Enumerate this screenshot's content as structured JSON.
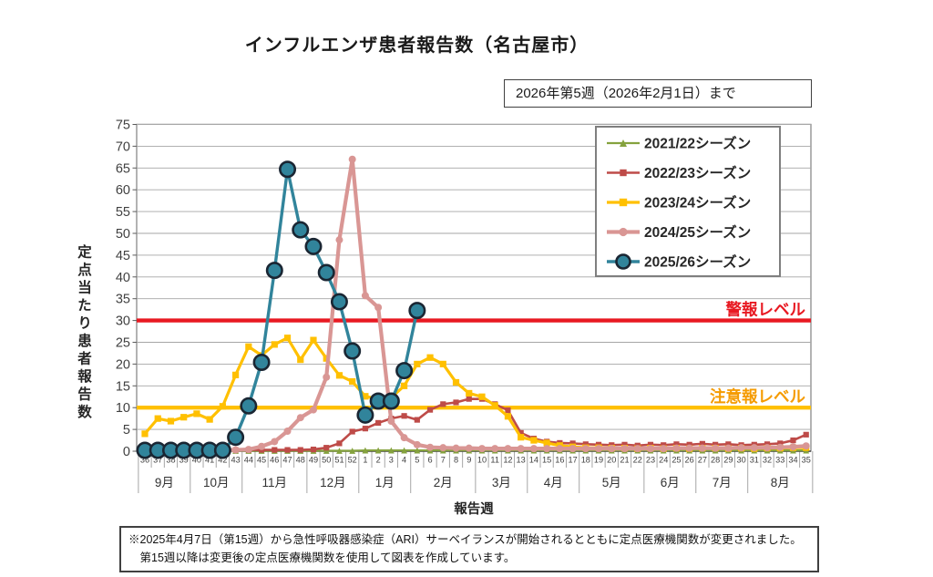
{
  "title": "インフルエンザ患者報告数（名古屋市）",
  "annotation": "2026年第5週（2026年2月1日）まで",
  "footnote": {
    "line1": "※2025年4月7日（第15週）から急性呼吸器感染症（ARI）サーベイランスが開始されるとともに定点医療機関数が変更されました。",
    "line2": "　第15週以降は変更後の定点医療機関数を使用して図表を作成しています。"
  },
  "chart_data": {
    "type": "line",
    "title": "インフルエンザ患者報告数（名古屋市）",
    "xlabel": "報告週",
    "ylabel": "定点当たり患者報告数",
    "ylim": [
      0,
      75
    ],
    "ytick_step": 5,
    "grid": true,
    "legend_position": "upper right",
    "x_week_labels": [
      "36",
      "37",
      "38",
      "39",
      "40",
      "41",
      "42",
      "43",
      "44",
      "45",
      "46",
      "47",
      "48",
      "49",
      "50",
      "51",
      "52",
      "1",
      "2",
      "3",
      "4",
      "5",
      "6",
      "7",
      "8",
      "9",
      "10",
      "11",
      "12",
      "13",
      "14",
      "15",
      "16",
      "17",
      "18",
      "19",
      "20",
      "21",
      "22",
      "23",
      "24",
      "25",
      "26",
      "27",
      "28",
      "29",
      "30",
      "31",
      "32",
      "33",
      "34",
      "35"
    ],
    "month_groups": [
      {
        "label": "9月",
        "weeks": 4
      },
      {
        "label": "10月",
        "weeks": 4
      },
      {
        "label": "11月",
        "weeks": 5
      },
      {
        "label": "12月",
        "weeks": 4
      },
      {
        "label": "1月",
        "weeks": 4
      },
      {
        "label": "2月",
        "weeks": 5
      },
      {
        "label": "3月",
        "weeks": 4
      },
      {
        "label": "4月",
        "weeks": 4
      },
      {
        "label": "5月",
        "weeks": 5
      },
      {
        "label": "6月",
        "weeks": 4
      },
      {
        "label": "7月",
        "weeks": 4
      },
      {
        "label": "8月",
        "weeks": 5
      }
    ],
    "alert_lines": [
      {
        "label": "警報レベル",
        "value": 30,
        "color": "#e81922",
        "label_color": "#e81922"
      },
      {
        "label": "注意報レベル",
        "value": 10,
        "color": "#ffc000",
        "label_color": "#f59b00"
      }
    ],
    "series": [
      {
        "name": "2021/22シーズン",
        "color": "#85a23e",
        "marker": "triangle",
        "line_width": 2.2,
        "marker_size": 3.4,
        "values": [
          0.1,
          0.1,
          0.1,
          0.1,
          0.1,
          0.1,
          0.1,
          0.1,
          0.1,
          0.1,
          0.1,
          0.1,
          0.1,
          0.1,
          0.1,
          0.1,
          0.1,
          0.2,
          0.2,
          0.2,
          0.2,
          0.2,
          0.2,
          0.2,
          0.2,
          0.2,
          0.2,
          0.2,
          0.2,
          0.2,
          0.2,
          0.2,
          0.2,
          0.2,
          0.2,
          0.2,
          0.2,
          0.2,
          0.2,
          0.2,
          0.2,
          0.2,
          0.2,
          0.2,
          0.2,
          0.2,
          0.2,
          0.2,
          0.2,
          0.2,
          0.2,
          0.2
        ]
      },
      {
        "name": "2022/23シーズン",
        "color": "#be4b48",
        "marker": "square",
        "line_width": 2.6,
        "marker_size": 3.1,
        "values": [
          0.3,
          0.3,
          0.3,
          0.3,
          0.3,
          0.3,
          0.3,
          0.3,
          0.3,
          0.3,
          0.3,
          0.3,
          0.3,
          0.4,
          0.8,
          1.8,
          4.5,
          5.2,
          6.5,
          7.5,
          8.1,
          7.2,
          9.5,
          10.8,
          11.2,
          12,
          12,
          10.8,
          9.4,
          4.2,
          2.9,
          2.2,
          1.9,
          1.8,
          1.6,
          1.5,
          1.4,
          1.5,
          1.3,
          1.5,
          1.4,
          1.6,
          1.5,
          1.7,
          1.5,
          1.6,
          1.4,
          1.5,
          1.6,
          1.8,
          2.5,
          3.8
        ]
      },
      {
        "name": "2023/24シーズン",
        "color": "#ffc000",
        "marker": "square",
        "line_width": 3.2,
        "marker_size": 3.6,
        "values": [
          4,
          7.5,
          6.9,
          7.8,
          8.6,
          7.3,
          10.3,
          17.5,
          24,
          22,
          24.5,
          26,
          21,
          25.5,
          21.3,
          17.4,
          16,
          12.6,
          12,
          12.3,
          15,
          20,
          21.5,
          20,
          15.8,
          13.3,
          12.5,
          10.5,
          8,
          3.2,
          2.5,
          1.9,
          1.3,
          1,
          0.8,
          0.8,
          0.7,
          0.7,
          0.6,
          0.7,
          0.6,
          0.7,
          0.6,
          0.7,
          0.7,
          0.6,
          0.7,
          0.6,
          0.7,
          0.7,
          0.8,
          0.8
        ]
      },
      {
        "name": "2024/25シーズン",
        "color": "#d99694",
        "marker": "circle",
        "line_width": 4.2,
        "marker_size": 4,
        "values": [
          0.2,
          0.2,
          0.2,
          0.2,
          0.3,
          0.3,
          0.3,
          0.3,
          0.4,
          1.1,
          2.2,
          4.6,
          7.7,
          9.5,
          17,
          48.5,
          67,
          35.7,
          33,
          6.9,
          3.1,
          1.5,
          0.9,
          0.8,
          0.7,
          0.7,
          0.6,
          0.6,
          0.6,
          0.6,
          0.6,
          0.6,
          0.6,
          0.6,
          0.6,
          0.6,
          0.6,
          0.6,
          0.6,
          0.6,
          0.6,
          0.7,
          0.7,
          0.7,
          0.7,
          0.7,
          0.8,
          0.8,
          0.8,
          0.9,
          1,
          1.2
        ]
      },
      {
        "name": "2025/26シーズン",
        "color": "#31849b",
        "marker": "big-circle",
        "line_width": 3.4,
        "marker_size": 8.2,
        "marker_stroke": "#1a2633",
        "values": [
          0.2,
          0.2,
          0.2,
          0.2,
          0.2,
          0.2,
          0.2,
          3.2,
          10.4,
          20.4,
          41.5,
          64.7,
          50.8,
          47,
          41,
          34.3,
          23,
          8.3,
          11.5,
          11.5,
          18.5,
          32.3
        ]
      }
    ]
  }
}
